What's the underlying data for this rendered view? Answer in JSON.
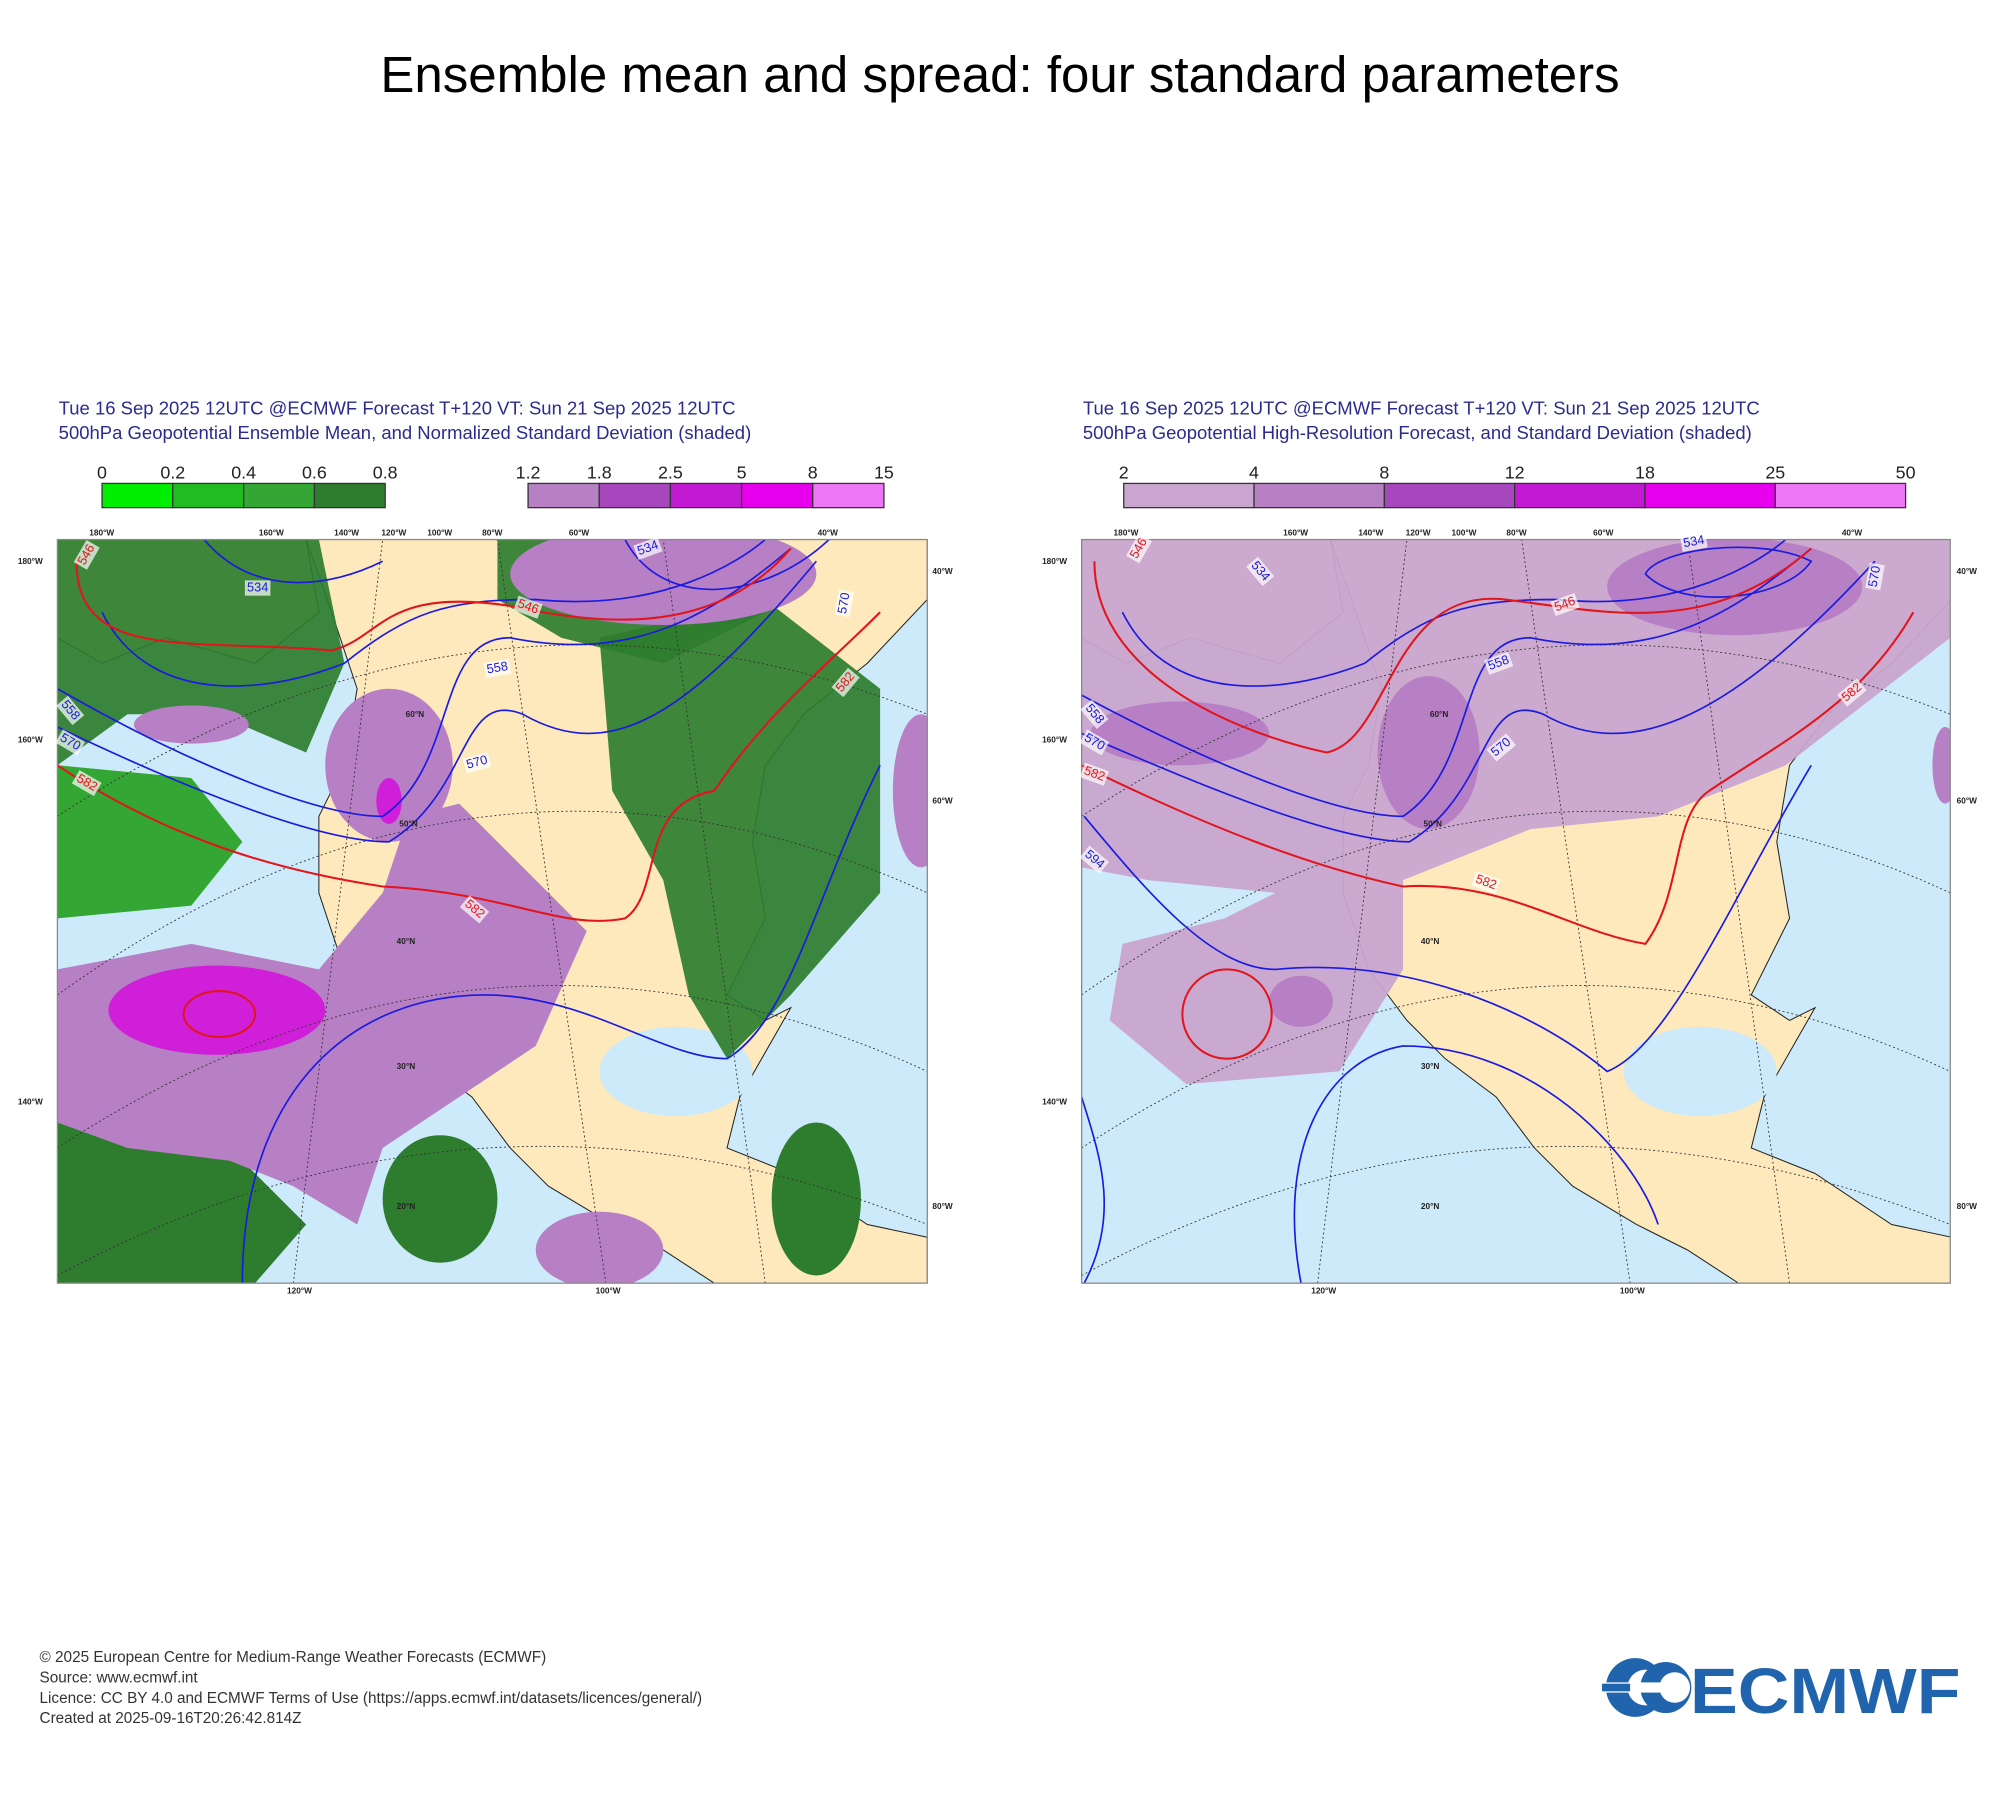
{
  "title": "Ensemble mean and spread: four standard parameters",
  "panels": [
    {
      "header": [
        "Tue 16 Sep 2025 12UTC @ECMWF Forecast T+120 VT: Sun 21 Sep 2025 12UTC",
        "500hPa Geopotential Ensemble Mean, and Normalized Standard Deviation (shaded)"
      ],
      "colorbars": [
        {
          "labels": [
            "0",
            "0.2",
            "0.4",
            "0.6",
            "0.8"
          ],
          "colors": [
            "#00ee00",
            "#22bb22",
            "#33a633",
            "#2e7d2e"
          ]
        },
        {
          "labels": [
            "1.2",
            "1.8",
            "2.5",
            "5",
            "8",
            "15"
          ],
          "colors": [
            "#b77fc4",
            "#a647bd",
            "#c21ad2",
            "#e600ee",
            "#ee77f5"
          ]
        }
      ],
      "map_labels": [
        "180°W",
        "160°W",
        "140°W",
        "120°W",
        "100°W",
        "80°W",
        "60°W",
        "40°W",
        "180°W",
        "160°W",
        "140°W",
        "40°W",
        "60°W",
        "80°W",
        "120°W",
        "100°W",
        "60°N",
        "50°N",
        "40°N",
        "30°N",
        "20°N"
      ],
      "contour_labels": [
        "546",
        "534",
        "558",
        "570",
        "582",
        "582",
        "546",
        "534",
        "570",
        "582",
        "558",
        "570"
      ]
    },
    {
      "header": [
        "Tue 16 Sep 2025 12UTC @ECMWF Forecast T+120 VT: Sun 21 Sep 2025 12UTC",
        "500hPa Geopotential High-Resolution Forecast, and Standard Deviation (shaded)"
      ],
      "colorbars": [
        {
          "labels": [
            "2",
            "4",
            "8",
            "12",
            "18",
            "25",
            "50"
          ],
          "colors": [
            "#c9a5cf",
            "#b77fc4",
            "#a647bd",
            "#c21ad2",
            "#e600ee",
            "#ee77f5"
          ]
        }
      ],
      "map_labels": [
        "180°W",
        "160°W",
        "140°W",
        "120°W",
        "100°W",
        "80°W",
        "60°W",
        "40°W",
        "180°W",
        "160°W",
        "140°W",
        "40°W",
        "60°W",
        "80°W",
        "120°W",
        "100°W",
        "60°N",
        "50°N",
        "40°N",
        "30°N",
        "20°N"
      ],
      "contour_labels": [
        "546",
        "534",
        "546",
        "534",
        "570",
        "582",
        "558",
        "570",
        "558",
        "570",
        "582",
        "594",
        "582"
      ]
    }
  ],
  "footer": [
    "© 2025 European Centre for Medium-Range Weather Forecasts (ECMWF)",
    "Source: www.ecmwf.int",
    "Licence: CC BY 4.0 and ECMWF Terms of Use (https://apps.ecmwf.int/datasets/licences/general/)",
    "Created at 2025-09-16T20:26:42.814Z"
  ],
  "logo": "ECMWF"
}
